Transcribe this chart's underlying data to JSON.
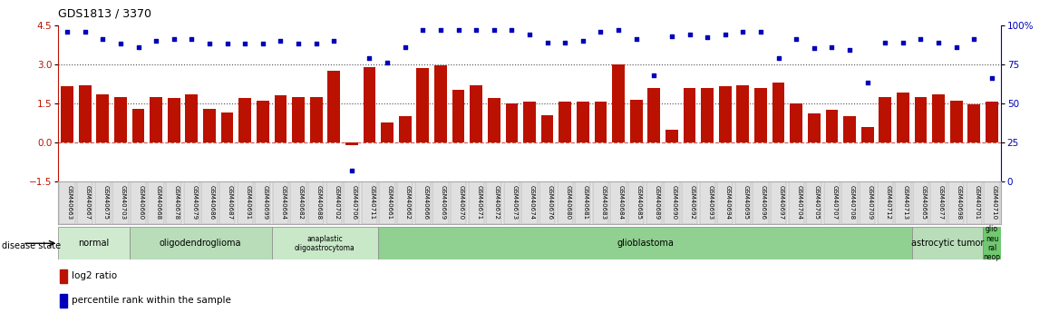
{
  "title": "GDS1813 / 3370",
  "samples": [
    "GSM40663",
    "GSM40667",
    "GSM40675",
    "GSM40703",
    "GSM40660",
    "GSM40668",
    "GSM40678",
    "GSM40679",
    "GSM40686",
    "GSM40687",
    "GSM40691",
    "GSM40699",
    "GSM40664",
    "GSM40682",
    "GSM40688",
    "GSM40702",
    "GSM40706",
    "GSM40711",
    "GSM40661",
    "GSM40662",
    "GSM40666",
    "GSM40669",
    "GSM40670",
    "GSM40671",
    "GSM40672",
    "GSM40673",
    "GSM40674",
    "GSM40676",
    "GSM40680",
    "GSM40681",
    "GSM40683",
    "GSM40684",
    "GSM40685",
    "GSM40689",
    "GSM40690",
    "GSM40692",
    "GSM40693",
    "GSM40694",
    "GSM40695",
    "GSM40696",
    "GSM40697",
    "GSM40704",
    "GSM40705",
    "GSM40707",
    "GSM40708",
    "GSM40709",
    "GSM40712",
    "GSM40713",
    "GSM40665",
    "GSM40677",
    "GSM40698",
    "GSM40701",
    "GSM40710"
  ],
  "log2_ratio": [
    2.15,
    2.2,
    1.85,
    1.75,
    1.3,
    1.75,
    1.7,
    1.85,
    1.3,
    1.15,
    1.7,
    1.6,
    1.8,
    1.75,
    1.75,
    2.75,
    -0.12,
    2.9,
    0.75,
    1.0,
    2.85,
    2.95,
    2.0,
    2.2,
    1.7,
    1.5,
    1.55,
    1.05,
    1.55,
    1.55,
    1.55,
    3.0,
    1.65,
    2.1,
    0.5,
    2.1,
    2.1,
    2.15,
    2.2,
    2.1,
    2.3,
    1.5,
    1.1,
    1.25,
    1.0,
    0.6,
    1.75,
    1.9,
    1.75,
    1.85,
    1.6,
    1.45,
    1.55
  ],
  "percentile": [
    96,
    96,
    91,
    88,
    86,
    90,
    91,
    91,
    88,
    88,
    88,
    88,
    90,
    88,
    88,
    90,
    7,
    79,
    76,
    86,
    97,
    97,
    97,
    97,
    97,
    97,
    94,
    89,
    89,
    90,
    96,
    97,
    91,
    68,
    93,
    94,
    92,
    94,
    96,
    96,
    79,
    91,
    85,
    86,
    84,
    63,
    89,
    89,
    91,
    89,
    86,
    91,
    66
  ],
  "disease_groups": [
    {
      "label": "normal",
      "start": 0,
      "end": 4,
      "color": "#d0ead0"
    },
    {
      "label": "oligodendroglioma",
      "start": 4,
      "end": 12,
      "color": "#b8ddb8"
    },
    {
      "label": "anaplastic\noligoastrocytoma",
      "start": 12,
      "end": 18,
      "color": "#c8e8c8"
    },
    {
      "label": "glioblastoma",
      "start": 18,
      "end": 48,
      "color": "#90d090"
    },
    {
      "label": "astrocytic tumor",
      "start": 48,
      "end": 52,
      "color": "#b8ddb8"
    },
    {
      "label": "glio\nneu\nral\nneop",
      "start": 52,
      "end": 53,
      "color": "#70c870"
    }
  ],
  "bar_color": "#bb1100",
  "dot_color": "#0000bb",
  "ylim_left": [
    -1.5,
    4.5
  ],
  "ylim_right": [
    0,
    100
  ],
  "yticks_left": [
    -1.5,
    0.0,
    1.5,
    3.0,
    4.5
  ],
  "yticks_right": [
    0,
    25,
    50,
    75,
    100
  ],
  "hlines": [
    1.5,
    3.0
  ],
  "hline0_color": "#cc2200",
  "background_color": "#ffffff"
}
